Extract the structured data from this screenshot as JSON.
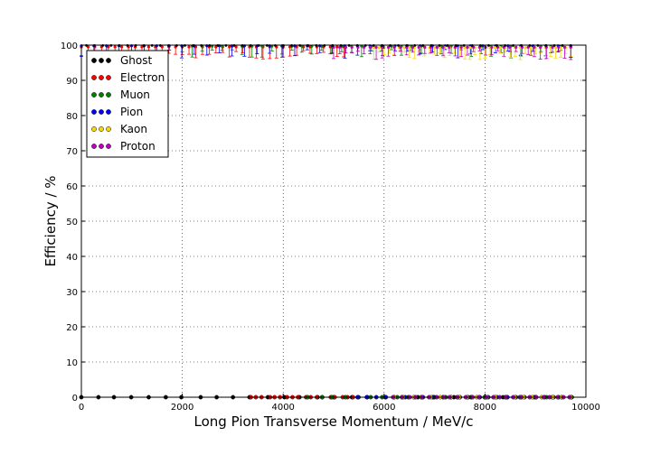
{
  "chart_data": {
    "type": "scatter",
    "xlabel": "Long Pion Transverse Momentum / MeV/c",
    "ylabel": "Efficiency / %",
    "xlim": [
      0,
      10000
    ],
    "ylim": [
      0,
      100
    ],
    "x_ticks": [
      "0",
      "2000",
      "4000",
      "6000",
      "8000",
      "10000"
    ],
    "y_ticks": [
      "0",
      "10",
      "20",
      "30",
      "40",
      "50",
      "60",
      "70",
      "80",
      "90",
      "100"
    ],
    "grid": true,
    "legend_position": "top-left",
    "series": [
      {
        "name": "Ghost",
        "color": "#000000",
        "x_range": [
          0,
          9700
        ],
        "y": 0,
        "points": 30,
        "note_level": "bottom"
      },
      {
        "name": "Electron",
        "color": "#ff0000",
        "x_range": [
          3350,
          5400
        ],
        "y": 0,
        "points": 18,
        "top_x_range": [
          0,
          5200
        ],
        "top_y": 99.5
      },
      {
        "name": "Muon",
        "color": "#008000",
        "x_range": [
          4500,
          9700
        ],
        "y": 0,
        "points": 22,
        "top_x_range": [
          2000,
          9700
        ],
        "top_y": 99.7
      },
      {
        "name": "Pion",
        "color": "#0000ff",
        "x_range": [
          5500,
          9700
        ],
        "y": 0,
        "points": 24,
        "top_x_range": [
          0,
          9700
        ],
        "top_y": 99.8
      },
      {
        "name": "Kaon",
        "color": "#ffd700",
        "x_range": [
          6200,
          9700
        ],
        "y": 0,
        "points": 20,
        "top_x_range": [
          5800,
          9700
        ],
        "top_y": 99.3
      },
      {
        "name": "Proton",
        "color": "#bf00bf",
        "x_range": [
          6200,
          9700
        ],
        "y": 0,
        "points": 26,
        "top_x_range": [
          5000,
          9700
        ],
        "top_y": 99.4
      }
    ]
  }
}
